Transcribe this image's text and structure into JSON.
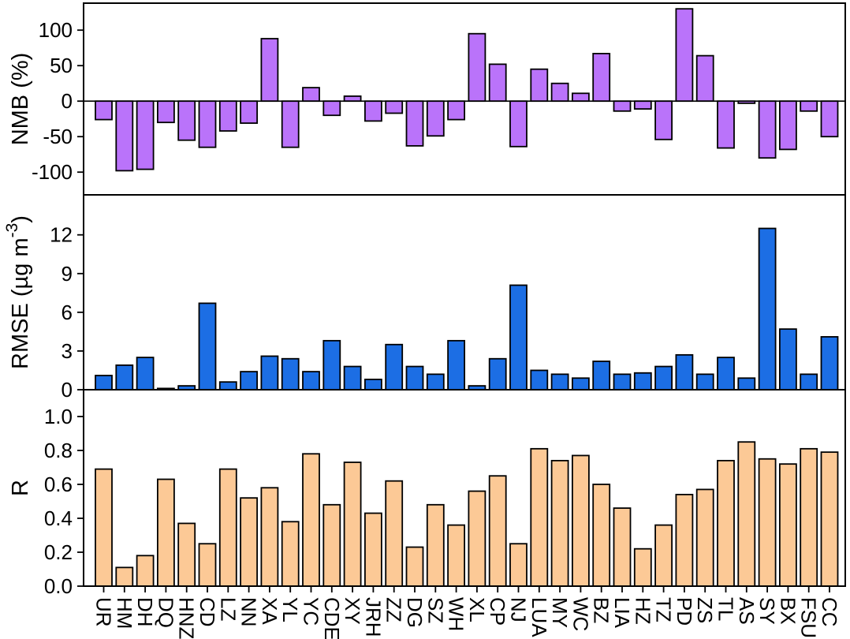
{
  "figure": {
    "background": "#ffffff",
    "frame_color": "#000000",
    "text_color": "#000000"
  },
  "chart_data": {
    "type": "bar",
    "orientation": "vertical",
    "grid": false,
    "legend": false,
    "shared_x": true,
    "categories": [
      "UR",
      "HM",
      "DH",
      "DQ",
      "HNZ",
      "CD",
      "LZ",
      "NN",
      "XA",
      "YL",
      "YC",
      "CDE",
      "XY",
      "JRH",
      "ZZ",
      "DG",
      "SZ",
      "WH",
      "XL",
      "CP",
      "NJ",
      "LUA",
      "MY",
      "WC",
      "BZ",
      "LIA",
      "HZ",
      "TZ",
      "PD",
      "ZS",
      "TL",
      "AS",
      "SY",
      "BX",
      "FSU",
      "CC"
    ],
    "panels": [
      {
        "id": "nmb",
        "ylabel": "NMB (%)",
        "ylabel_parts": [
          {
            "t": "NMB (%)"
          }
        ],
        "bar_color": "#BA73FA",
        "bar_edge_color": "#000000",
        "ylim": [
          -132,
          138
        ],
        "yticks": [
          -100,
          -50,
          0,
          50,
          100
        ],
        "ytick_labels": [
          "-100",
          "-50",
          "0",
          "50",
          "100"
        ],
        "zero_line": true,
        "values": [
          -26,
          -98,
          -96,
          -30,
          -55,
          -65,
          -42,
          -31,
          88,
          -65,
          19,
          -20,
          7,
          -28,
          -17,
          -63,
          -49,
          -26,
          95,
          52,
          -64,
          45,
          25,
          11,
          67,
          -14,
          -11,
          -54,
          130,
          64,
          -66,
          -3,
          -80,
          -68,
          -14,
          -50
        ]
      },
      {
        "id": "rmse",
        "ylabel": "RMSE (µg m⁻³)",
        "ylabel_parts": [
          {
            "t": "RMSE (µg m"
          },
          {
            "t": "-3",
            "sup": true
          },
          {
            "t": ")"
          }
        ],
        "bar_color": "#1C6EE4",
        "bar_edge_color": "#000000",
        "ylim": [
          0,
          15.1
        ],
        "yticks": [
          0,
          3,
          6,
          9,
          12
        ],
        "ytick_labels": [
          "0",
          "3",
          "6",
          "9",
          "12"
        ],
        "zero_line": false,
        "values": [
          1.1,
          1.9,
          2.5,
          0.1,
          0.3,
          6.7,
          0.6,
          1.4,
          2.6,
          2.4,
          1.4,
          3.8,
          1.8,
          0.8,
          3.5,
          1.8,
          1.2,
          3.8,
          0.3,
          2.4,
          8.1,
          1.5,
          1.2,
          0.9,
          2.2,
          1.2,
          1.3,
          1.8,
          2.7,
          1.2,
          2.5,
          0.9,
          12.5,
          4.7,
          1.2,
          4.1
        ]
      },
      {
        "id": "r",
        "ylabel": "R",
        "ylabel_parts": [
          {
            "t": "R"
          }
        ],
        "bar_color": "#FCC996",
        "bar_edge_color": "#000000",
        "ylim": [
          0,
          1.158
        ],
        "yticks": [
          0.0,
          0.2,
          0.4,
          0.6,
          0.8,
          1.0
        ],
        "ytick_labels": [
          "0.0",
          "0.2",
          "0.4",
          "0.6",
          "0.8",
          "1.0"
        ],
        "zero_line": false,
        "values": [
          0.69,
          0.11,
          0.18,
          0.63,
          0.37,
          0.25,
          0.69,
          0.52,
          0.58,
          0.38,
          0.78,
          0.48,
          0.73,
          0.43,
          0.62,
          0.23,
          0.48,
          0.36,
          0.56,
          0.65,
          0.25,
          0.81,
          0.74,
          0.77,
          0.6,
          0.46,
          0.22,
          0.36,
          0.54,
          0.57,
          0.74,
          0.85,
          0.75,
          0.72,
          0.81,
          0.79
        ]
      }
    ]
  }
}
